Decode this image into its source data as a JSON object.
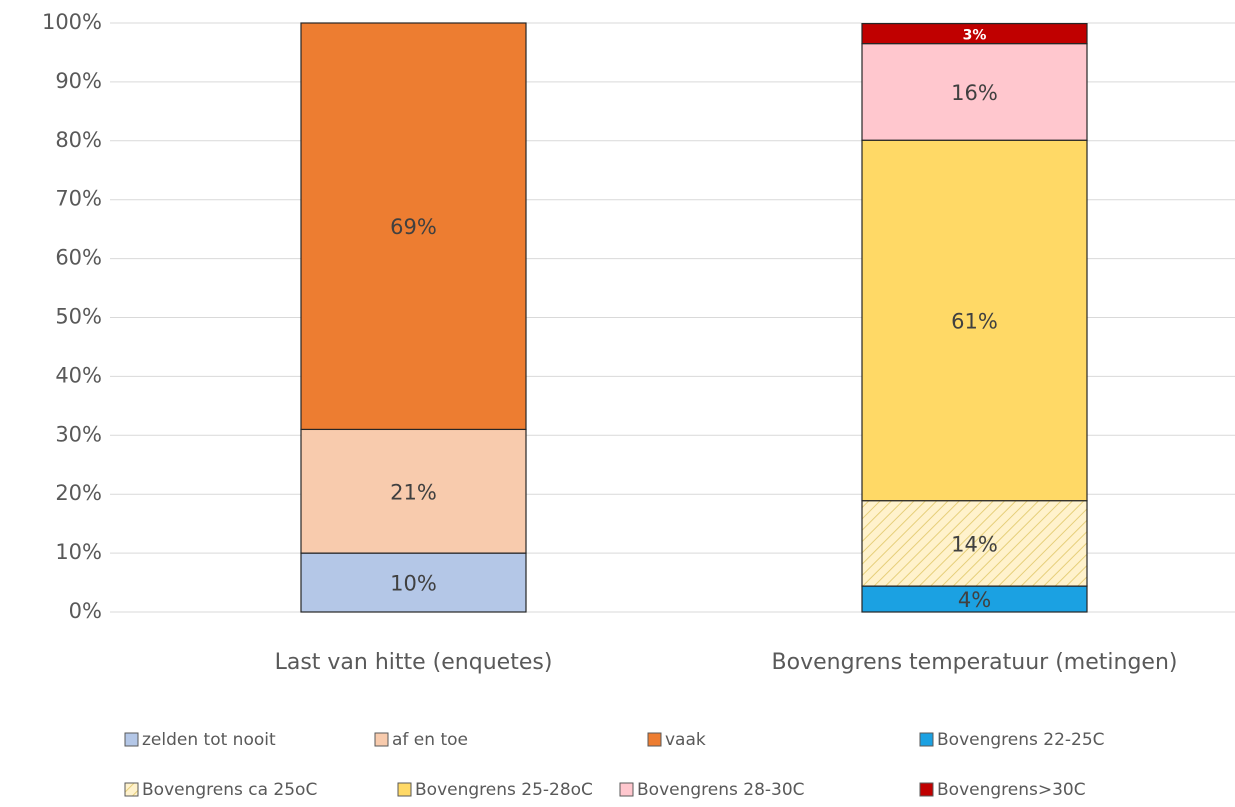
{
  "chart_data": {
    "type": "stacked_bar",
    "categories": [
      "Last van hitte (enquetes)",
      "Bovengrens temperatuur (metingen)"
    ],
    "series": [
      {
        "name": "zelden tot nooit",
        "color": "#b4c7e7",
        "values": [
          10,
          null
        ],
        "value_labels": [
          "10%",
          null
        ]
      },
      {
        "name": "af en toe",
        "color": "#f8cbad",
        "values": [
          21,
          null
        ],
        "value_labels": [
          "21%",
          null
        ]
      },
      {
        "name": "vaak",
        "color": "#ed7d31",
        "values": [
          69,
          null
        ],
        "value_labels": [
          "69%",
          null
        ]
      },
      {
        "name": "Bovengrens 22-25C",
        "color": "#1ba1e2",
        "values": [
          null,
          4.4
        ],
        "value_labels": [
          null,
          "4%"
        ]
      },
      {
        "name": "Bovengrens ca 25oC",
        "color": "#fff2cc",
        "hatch": true,
        "values": [
          null,
          14.5
        ],
        "value_labels": [
          null,
          "14%"
        ]
      },
      {
        "name": "Bovengrens 25-28oC",
        "color": "#ffd966",
        "values": [
          null,
          61.2
        ],
        "value_labels": [
          null,
          "61%"
        ]
      },
      {
        "name": "Bovengrens 28-30C",
        "color": "#ffc7ce",
        "values": [
          null,
          16.4
        ],
        "value_labels": [
          null,
          "16%"
        ]
      },
      {
        "name": "Bovengrens>30C",
        "color": "#c00000",
        "values": [
          null,
          3.4
        ],
        "value_labels": [
          null,
          "3%"
        ]
      }
    ],
    "ylim": [
      0,
      100
    ],
    "yticks": [
      {
        "value": 0,
        "label": "0%"
      },
      {
        "value": 10,
        "label": "10%"
      },
      {
        "value": 20,
        "label": "20%"
      },
      {
        "value": 30,
        "label": "30%"
      },
      {
        "value": 40,
        "label": "40%"
      },
      {
        "value": 50,
        "label": "50%"
      },
      {
        "value": 60,
        "label": "60%"
      },
      {
        "value": 70,
        "label": "70%"
      },
      {
        "value": 80,
        "label": "80%"
      },
      {
        "value": 90,
        "label": "90%"
      },
      {
        "value": 100,
        "label": "100%"
      }
    ],
    "grid": true,
    "legend": "bottom"
  }
}
